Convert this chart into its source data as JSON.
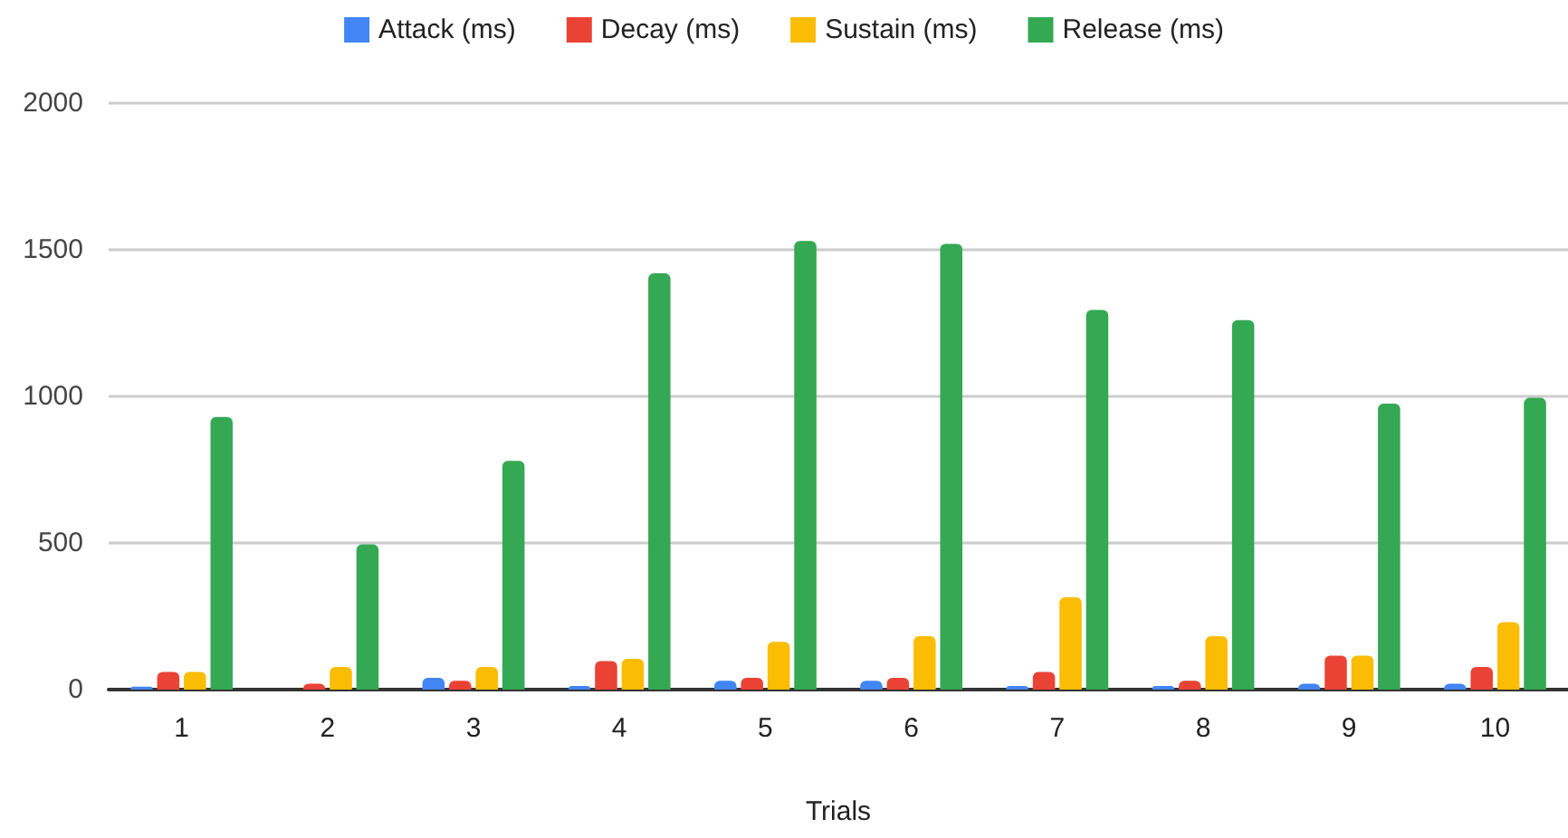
{
  "chart_data": {
    "type": "bar",
    "xlabel": "Trials",
    "categories": [
      "1",
      "2",
      "3",
      "4",
      "5",
      "6",
      "7",
      "8",
      "9",
      "10"
    ],
    "series": [
      {
        "name": "Attack (ms)",
        "color": "#4285f4",
        "values": [
          10,
          0,
          40,
          12,
          30,
          30,
          12,
          12,
          20,
          20
        ]
      },
      {
        "name": "Decay (ms)",
        "color": "#ea4335",
        "values": [
          60,
          20,
          30,
          97,
          40,
          40,
          60,
          30,
          116,
          77
        ]
      },
      {
        "name": "Sustain (ms)",
        "color": "#fbbc04",
        "values": [
          60,
          77,
          77,
          105,
          163,
          182,
          315,
          182,
          116,
          230
        ]
      },
      {
        "name": "Release (ms)",
        "color": "#34a853",
        "values": [
          930,
          495,
          780,
          1420,
          1530,
          1520,
          1295,
          1260,
          975,
          995
        ]
      }
    ],
    "ylim": [
      0,
      2000
    ],
    "yticks": [
      0,
      500,
      1000,
      1500,
      2000
    ],
    "grid": "y",
    "legend": "top"
  }
}
